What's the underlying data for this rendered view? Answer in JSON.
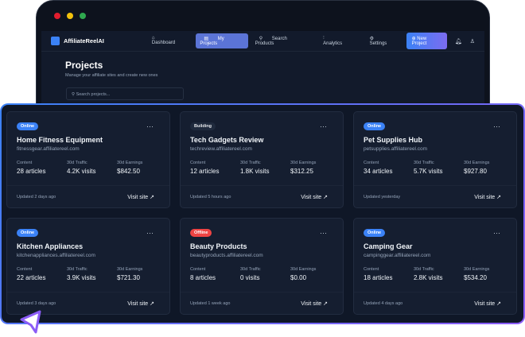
{
  "window": {
    "dot_colors": [
      "#e11d2e",
      "#f2c10c",
      "#2fa84f"
    ]
  },
  "nav": {
    "brand": "AffiliateReelAI",
    "links": [
      "Dashboard",
      "My Projects",
      "Search Products",
      "Analytics",
      "Settings"
    ],
    "icons": [
      "⌂",
      "▤",
      "⚲",
      "⫶",
      "⚙"
    ],
    "new_project": "New Project"
  },
  "page": {
    "title": "Projects",
    "subtitle": "Manage your affiliate sites and create new ones",
    "search_placeholder": "Search projects..."
  },
  "labels": {
    "content": "Content",
    "traffic": "30d Traffic",
    "earnings": "30d Earnings",
    "visit": "Visit site"
  },
  "status_colors": {
    "Online": "#3b82f6",
    "Building": "#1f2a3d",
    "Offline": "#ef4444"
  },
  "projects": [
    {
      "status": "Online",
      "name": "Home Fitness Equipment",
      "url": "fitnessgear.affiliatereel.com",
      "content": "28 articles",
      "traffic": "4.2K visits",
      "earnings": "$842.50",
      "updated": "Updated 2 days ago"
    },
    {
      "status": "Building",
      "name": "Tech Gadgets Review",
      "url": "techreview.affiliatereel.com",
      "content": "12 articles",
      "traffic": "1.8K visits",
      "earnings": "$312.25",
      "updated": "Updated 5 hours ago"
    },
    {
      "status": "Online",
      "name": "Pet Supplies Hub",
      "url": "petsupplies.affiliatereel.com",
      "content": "34 articles",
      "traffic": "5.7K visits",
      "earnings": "$927.80",
      "updated": "Updated yesterday"
    },
    {
      "status": "Online",
      "name": "Kitchen Appliances",
      "url": "kitchenappliances.affiliatereel.com",
      "content": "22 articles",
      "traffic": "3.9K visits",
      "earnings": "$721.30",
      "updated": "Updated 3 days ago"
    },
    {
      "status": "Offline",
      "name": "Beauty Products",
      "url": "beautyproducts.affiliatereel.com",
      "content": "8 articles",
      "traffic": "0 visits",
      "earnings": "$0.00",
      "updated": "Updated 1 week ago"
    },
    {
      "status": "Online",
      "name": "Camping Gear",
      "url": "campinggear.affiliatereel.com",
      "content": "18 articles",
      "traffic": "2.8K visits",
      "earnings": "$534.20",
      "updated": "Updated 4 days ago"
    }
  ]
}
